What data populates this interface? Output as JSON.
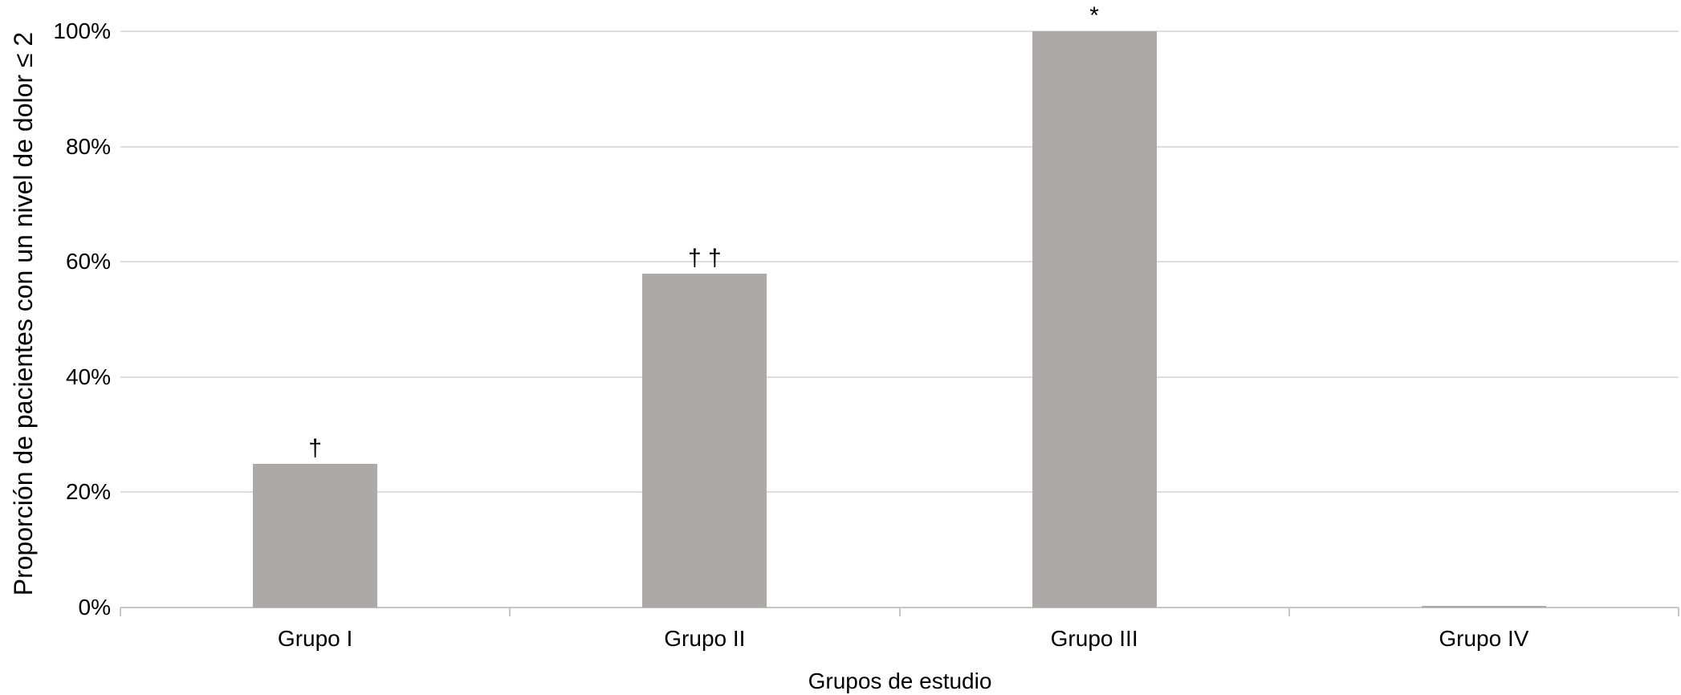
{
  "chart_data": {
    "type": "bar",
    "title": "",
    "xlabel": "Grupos de estudio",
    "ylabel": "Proporción de pacientes con un nivel de dolor ≤ 2",
    "categories": [
      "Grupo I",
      "Grupo II",
      "Grupo III",
      "Grupo IV"
    ],
    "values": [
      25,
      58,
      100,
      0.3
    ],
    "annotations": [
      "†",
      "† †",
      "*",
      ""
    ],
    "yticks": [
      0,
      20,
      40,
      60,
      80,
      100
    ],
    "ytick_labels": [
      "0%",
      "20%",
      "40%",
      "60%",
      "80%",
      "100%"
    ],
    "ylim": [
      0,
      100
    ],
    "grid": true,
    "legend": false,
    "colors": {
      "bar_fill": "#ADA9A8",
      "gridline": "#DDDDDD",
      "axis_line": "#C6C6C6",
      "text": "#000000",
      "background": "#FFFFFF"
    }
  }
}
